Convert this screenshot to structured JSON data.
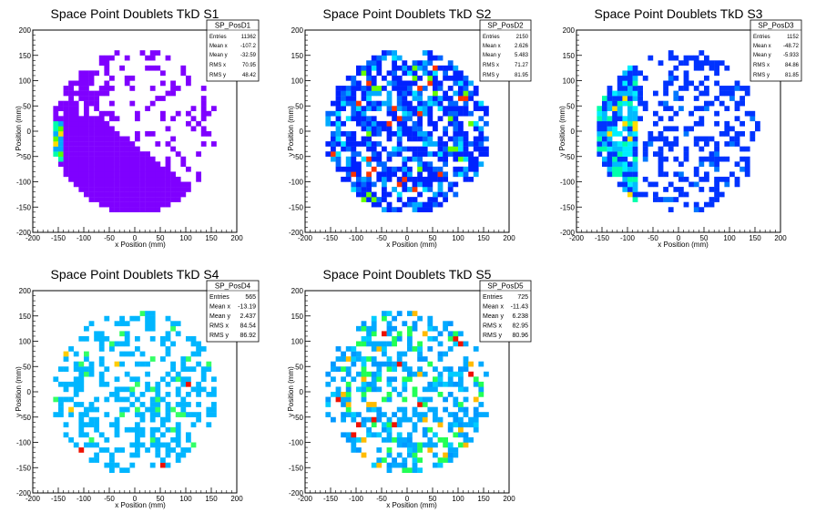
{
  "page": {
    "background": "#ffffff"
  },
  "chart_data": [
    {
      "type": "heatmap",
      "title": "Space Point Doublets TkD S1",
      "xlabel": "x Position (mm)",
      "ylabel": "y Position (mm)",
      "xlim": [
        -200,
        200
      ],
      "ylim": [
        -200,
        200
      ],
      "x_ticks": [
        "-200",
        "-150",
        "-100",
        "-50",
        "0",
        "50",
        "100",
        "150",
        "200"
      ],
      "y_ticks": [
        "-200",
        "-150",
        "-100",
        "-50",
        "0",
        "50",
        "100",
        "150",
        "200"
      ],
      "bin_width": 10,
      "colors": [
        "#7f00ff",
        "#3300ff",
        "#0011ff",
        "#00aaff",
        "#00ffaa",
        "#55ff00",
        "#ffdd00",
        "#ff4400",
        "#dd0000"
      ],
      "pattern": "lower-left-dense",
      "seed": 11,
      "stats": {
        "name": "SP_PosD1",
        "rows": [
          {
            "label": "Entries",
            "value": "11362"
          },
          {
            "label": "Mean x",
            "value": "-107.2"
          },
          {
            "label": "Mean y",
            "value": "-32.59"
          },
          {
            "label": "RMS x",
            "value": "70.95"
          },
          {
            "label": "RMS y",
            "value": "48.42"
          }
        ]
      }
    },
    {
      "type": "heatmap",
      "title": "Space Point Doublets TkD S2",
      "xlabel": "x Position (mm)",
      "ylabel": "y Position (mm)",
      "xlim": [
        -200,
        200
      ],
      "ylim": [
        -200,
        200
      ],
      "x_ticks": [
        "-200",
        "-150",
        "-100",
        "-50",
        "0",
        "50",
        "100",
        "150",
        "200"
      ],
      "y_ticks": [
        "-200",
        "-150",
        "-100",
        "-50",
        "0",
        "50",
        "100",
        "150",
        "200"
      ],
      "bin_width": 10,
      "colors": [
        "#1a00ff",
        "#0022ff",
        "#0066ff",
        "#00aaff",
        "#00e0ff",
        "#00ff99",
        "#66ff00",
        "#ffdd00",
        "#ff3300"
      ],
      "pattern": "dense-blue",
      "seed": 22,
      "stats": {
        "name": "SP_PosD2",
        "rows": [
          {
            "label": "Entries",
            "value": "2150"
          },
          {
            "label": "Mean x",
            "value": "2.626"
          },
          {
            "label": "Mean y",
            "value": "5.483"
          },
          {
            "label": "RMS x",
            "value": "71.27"
          },
          {
            "label": "RMS y",
            "value": "81.95"
          }
        ]
      }
    },
    {
      "type": "heatmap",
      "title": "Space Point Doublets TkD S3",
      "xlabel": "x Position (mm)",
      "ylabel": "y Position (mm)",
      "xlim": [
        -200,
        200
      ],
      "ylim": [
        -200,
        200
      ],
      "x_ticks": [
        "-200",
        "-150",
        "-100",
        "-50",
        "0",
        "50",
        "100",
        "150",
        "200"
      ],
      "y_ticks": [
        "-200",
        "-150",
        "-100",
        "-50",
        "0",
        "50",
        "100",
        "150",
        "200"
      ],
      "bin_width": 10,
      "colors": [
        "#2200ff",
        "#0033ff",
        "#0077ff",
        "#00bbff",
        "#00eeff",
        "#00ffaa",
        "#66ff00",
        "#ffdd00",
        "#ff3300"
      ],
      "pattern": "left-band",
      "seed": 33,
      "stats": {
        "name": "SP_PosD3",
        "rows": [
          {
            "label": "Entries",
            "value": "1152"
          },
          {
            "label": "Mean x",
            "value": "-48.72"
          },
          {
            "label": "Mean y",
            "value": "-5.933"
          },
          {
            "label": "RMS x",
            "value": "84.86"
          },
          {
            "label": "RMS y",
            "value": "81.85"
          }
        ]
      }
    },
    {
      "type": "heatmap",
      "title": "Space Point Doublets TkD S4",
      "xlabel": "x Position (mm)",
      "ylabel": "y Position (mm)",
      "xlim": [
        -200,
        200
      ],
      "ylim": [
        -200,
        200
      ],
      "x_ticks": [
        "-200",
        "-150",
        "-100",
        "-50",
        "0",
        "50",
        "100",
        "150",
        "200"
      ],
      "y_ticks": [
        "-200",
        "-150",
        "-100",
        "-50",
        "0",
        "50",
        "100",
        "150",
        "200"
      ],
      "bin_width": 10,
      "colors": [
        "#00aaee",
        "#00bbee",
        "#00b6ff",
        "#10c0ff",
        "#00ddff",
        "#33ff66",
        "#66ff00",
        "#ffcc00",
        "#ee1100"
      ],
      "pattern": "sparse-light",
      "seed": 44,
      "stats": {
        "name": "SP_PosD4",
        "rows": [
          {
            "label": "Entries",
            "value": "565"
          },
          {
            "label": "Mean x",
            "value": "-13.19"
          },
          {
            "label": "Mean y",
            "value": "2.437"
          },
          {
            "label": "RMS x",
            "value": "84.54"
          },
          {
            "label": "RMS y",
            "value": "86.92"
          }
        ]
      }
    },
    {
      "type": "heatmap",
      "title": "Space Point Doublets TkD S5",
      "xlabel": "x Position (mm)",
      "ylabel": "y Position (mm)",
      "xlim": [
        -200,
        200
      ],
      "ylim": [
        -200,
        200
      ],
      "x_ticks": [
        "-200",
        "-150",
        "-100",
        "-50",
        "0",
        "50",
        "100",
        "150",
        "200"
      ],
      "y_ticks": [
        "-200",
        "-150",
        "-100",
        "-50",
        "0",
        "50",
        "100",
        "150",
        "200"
      ],
      "bin_width": 10,
      "colors": [
        "#0077ff",
        "#0099ff",
        "#00aaff",
        "#00ccff",
        "#00ffcc",
        "#22ff55",
        "#88ff00",
        "#ffbb00",
        "#ee1100"
      ],
      "pattern": "sparse-mixed",
      "seed": 55,
      "stats": {
        "name": "SP_PosD5",
        "rows": [
          {
            "label": "Entries",
            "value": "725"
          },
          {
            "label": "Mean x",
            "value": "-11.43"
          },
          {
            "label": "Mean y",
            "value": "6.238"
          },
          {
            "label": "RMS x",
            "value": "82.95"
          },
          {
            "label": "RMS y",
            "value": "80.96"
          }
        ]
      }
    }
  ]
}
